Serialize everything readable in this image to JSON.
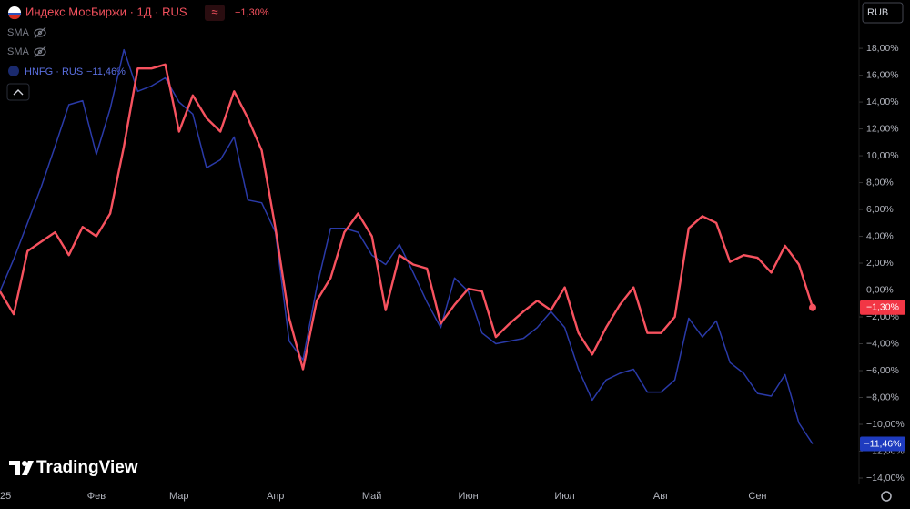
{
  "chart_data": {
    "type": "line",
    "currency": "RUB",
    "indicators": [
      "SMA",
      "SMA"
    ],
    "compare_icon": "≈",
    "watermark": "TradingView",
    "categories": [
      "25",
      null,
      null,
      null,
      null,
      null,
      null,
      "Фев",
      null,
      null,
      null,
      null,
      null,
      "Мар",
      null,
      null,
      null,
      null,
      null,
      null,
      "Апр",
      null,
      null,
      null,
      null,
      null,
      null,
      "Май",
      null,
      null,
      null,
      null,
      null,
      null,
      "Июн",
      null,
      null,
      null,
      null,
      null,
      null,
      "Июл",
      null,
      null,
      null,
      null,
      null,
      null,
      "Авг",
      null,
      null,
      null,
      null,
      null,
      null,
      "Сен",
      null,
      null,
      null,
      null
    ],
    "series": [
      {
        "name": "Индекс МосБиржи · 1Д · RUS",
        "color": "#f7525f",
        "values": [
          -0.1,
          -1.8,
          2.9,
          3.6,
          4.3,
          2.6,
          4.7,
          4.0,
          5.7,
          10.7,
          16.5,
          16.5,
          16.8,
          11.8,
          14.5,
          12.8,
          11.8,
          14.8,
          12.8,
          10.4,
          4.6,
          -2.1,
          -5.9,
          -0.8,
          0.9,
          4.3,
          5.7,
          4.0,
          -1.5,
          2.6,
          1.9,
          1.6,
          -2.5,
          -1.1,
          0.1,
          -0.1,
          -3.5,
          -2.5,
          -1.6,
          -0.8,
          -1.5,
          0.2,
          -3.2,
          -4.8,
          -2.8,
          -1.1,
          0.2,
          -3.2,
          -3.2,
          -2.0,
          4.6,
          5.5,
          5.0,
          2.1,
          2.6,
          2.4,
          1.3,
          3.3,
          1.9,
          -1.3
        ],
        "value_labels": [
          null,
          null,
          null,
          null,
          null,
          null,
          null,
          null,
          null,
          null,
          null,
          null,
          null,
          null,
          null,
          null,
          null,
          null,
          null,
          null,
          null,
          null,
          null,
          null,
          null,
          null,
          null,
          null,
          null,
          null,
          null,
          null,
          null,
          null,
          null,
          null,
          null,
          null,
          null,
          null,
          null,
          null,
          null,
          null,
          null,
          null,
          null,
          null,
          null,
          null,
          null,
          null,
          null,
          null,
          null,
          null,
          null,
          null,
          null,
          "−1,30%"
        ]
      },
      {
        "name": "HNFG · RUS",
        "color": "#2a3aa8",
        "values": [
          -0.1,
          2.3,
          5.0,
          7.7,
          10.7,
          13.8,
          14.1,
          10.1,
          13.5,
          17.9,
          14.8,
          15.2,
          15.8,
          14.0,
          13.1,
          9.1,
          9.7,
          11.4,
          6.7,
          6.5,
          4.3,
          -3.8,
          -5.2,
          0.2,
          4.6,
          4.6,
          4.3,
          2.6,
          1.9,
          3.4,
          1.3,
          -0.9,
          -2.8,
          0.9,
          -0.1,
          -3.2,
          -4.0,
          -3.8,
          -3.6,
          -2.8,
          -1.6,
          -2.8,
          -5.9,
          -8.2,
          -6.7,
          -6.2,
          -5.9,
          -7.6,
          -7.6,
          -6.7,
          -2.1,
          -3.5,
          -2.3,
          -5.4,
          -6.2,
          -7.7,
          -7.9,
          -6.3,
          -9.9,
          -11.46
        ],
        "value_labels": [
          null,
          null,
          null,
          null,
          null,
          null,
          null,
          null,
          null,
          null,
          null,
          null,
          null,
          null,
          null,
          null,
          null,
          null,
          null,
          null,
          null,
          null,
          null,
          null,
          null,
          null,
          null,
          null,
          null,
          null,
          null,
          null,
          null,
          null,
          null,
          null,
          null,
          null,
          null,
          null,
          null,
          null,
          null,
          null,
          null,
          null,
          null,
          null,
          null,
          null,
          null,
          null,
          null,
          null,
          null,
          null,
          null,
          null,
          null,
          "−11,46%"
        ]
      }
    ],
    "ylim": [
      -14.3,
      21.6
    ],
    "yticks": [
      {
        "value": 18,
        "label": "18,00%"
      },
      {
        "value": 16,
        "label": "16,00%"
      },
      {
        "value": 14,
        "label": "14,00%"
      },
      {
        "value": 12,
        "label": "12,00%"
      },
      {
        "value": 10,
        "label": "10,00%"
      },
      {
        "value": 8,
        "label": "8,00%"
      },
      {
        "value": 6,
        "label": "6,00%"
      },
      {
        "value": 4,
        "label": "4,00%"
      },
      {
        "value": 2,
        "label": "2,00%"
      },
      {
        "value": 0,
        "label": "0,00%"
      },
      {
        "value": -2,
        "label": "−2,00%"
      },
      {
        "value": -4,
        "label": "−4,00%"
      },
      {
        "value": -6,
        "label": "−6,00%"
      },
      {
        "value": -8,
        "label": "−8,00%"
      },
      {
        "value": -10,
        "label": "−10,00%"
      },
      {
        "value": -12,
        "label": "−12,00%"
      },
      {
        "value": -14,
        "label": "−14,00%"
      }
    ],
    "zero_line": 0,
    "grid": false
  }
}
